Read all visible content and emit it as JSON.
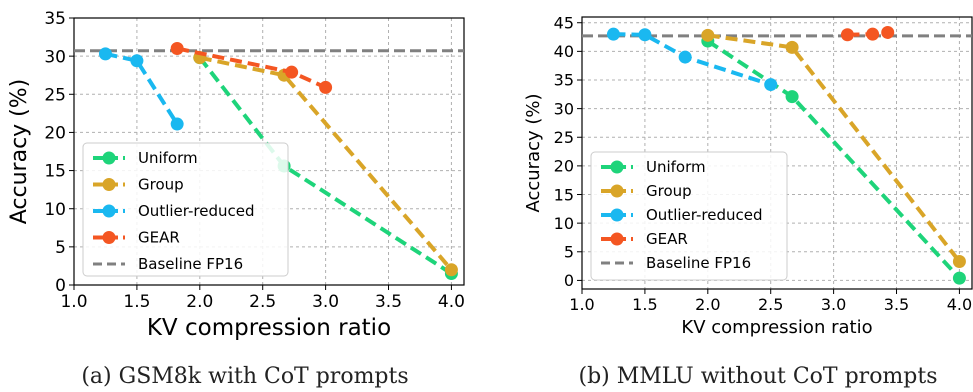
{
  "chart_data": [
    {
      "type": "line",
      "xlabel": "KV compression ratio",
      "ylabel": "Accuracy (%)",
      "xlim": [
        1.0,
        4.1
      ],
      "ylim": [
        0,
        35
      ],
      "xticks": [
        "1.0",
        "1.5",
        "2.0",
        "2.5",
        "3.0",
        "3.5",
        "4.0"
      ],
      "yticks": [
        "0",
        "5",
        "10",
        "15",
        "20",
        "25",
        "30",
        "35"
      ],
      "grid": true,
      "legend": "lower-left",
      "caption": "(a) GSM8k with CoT prompts",
      "baseline": {
        "name": "Baseline FP16",
        "value": 30.7,
        "color": "#808080"
      },
      "series": [
        {
          "name": "Uniform",
          "color": "#1ed47a",
          "x": [
            2.0,
            2.67,
            4.0
          ],
          "y": [
            29.8,
            15.6,
            1.5
          ]
        },
        {
          "name": "Group",
          "color": "#d9a528",
          "x": [
            2.0,
            2.67,
            4.0
          ],
          "y": [
            29.8,
            27.5,
            2.0
          ]
        },
        {
          "name": "Outlier-reduced",
          "color": "#1ab8f0",
          "x": [
            1.25,
            1.5,
            1.82
          ],
          "y": [
            30.3,
            29.4,
            21.1
          ]
        },
        {
          "name": "GEAR",
          "color": "#f45622",
          "x": [
            1.82,
            2.73,
            3.0
          ],
          "y": [
            31.0,
            27.9,
            25.9
          ]
        }
      ]
    },
    {
      "type": "line",
      "xlabel": "KV compression ratio",
      "ylabel": "Accuracy (%)",
      "xlim": [
        1.0,
        4.1
      ],
      "ylim": [
        -1.5,
        46
      ],
      "xticks": [
        "1.0",
        "1.5",
        "2.0",
        "2.5",
        "3.0",
        "3.5",
        "4.0"
      ],
      "yticks": [
        "0",
        "5",
        "10",
        "15",
        "20",
        "25",
        "30",
        "35",
        "40",
        "45"
      ],
      "grid": true,
      "legend": "lower-left",
      "caption": "(b) MMLU without CoT prompts",
      "baseline": {
        "name": "Baseline FP16",
        "value": 42.7,
        "color": "#808080"
      },
      "series": [
        {
          "name": "Uniform",
          "color": "#1ed47a",
          "x": [
            2.0,
            2.67,
            4.0
          ],
          "y": [
            41.8,
            32.1,
            0.4
          ]
        },
        {
          "name": "Group",
          "color": "#d9a528",
          "x": [
            2.0,
            2.67,
            4.0
          ],
          "y": [
            42.8,
            40.7,
            3.3
          ]
        },
        {
          "name": "Outlier-reduced",
          "color": "#1ab8f0",
          "x": [
            1.25,
            1.5,
            1.82,
            2.5
          ],
          "y": [
            43.0,
            42.9,
            39.0,
            34.2
          ]
        },
        {
          "name": "GEAR",
          "color": "#f45622",
          "x": [
            3.11,
            3.31,
            3.43
          ],
          "y": [
            42.9,
            43.0,
            43.3
          ]
        }
      ]
    }
  ]
}
